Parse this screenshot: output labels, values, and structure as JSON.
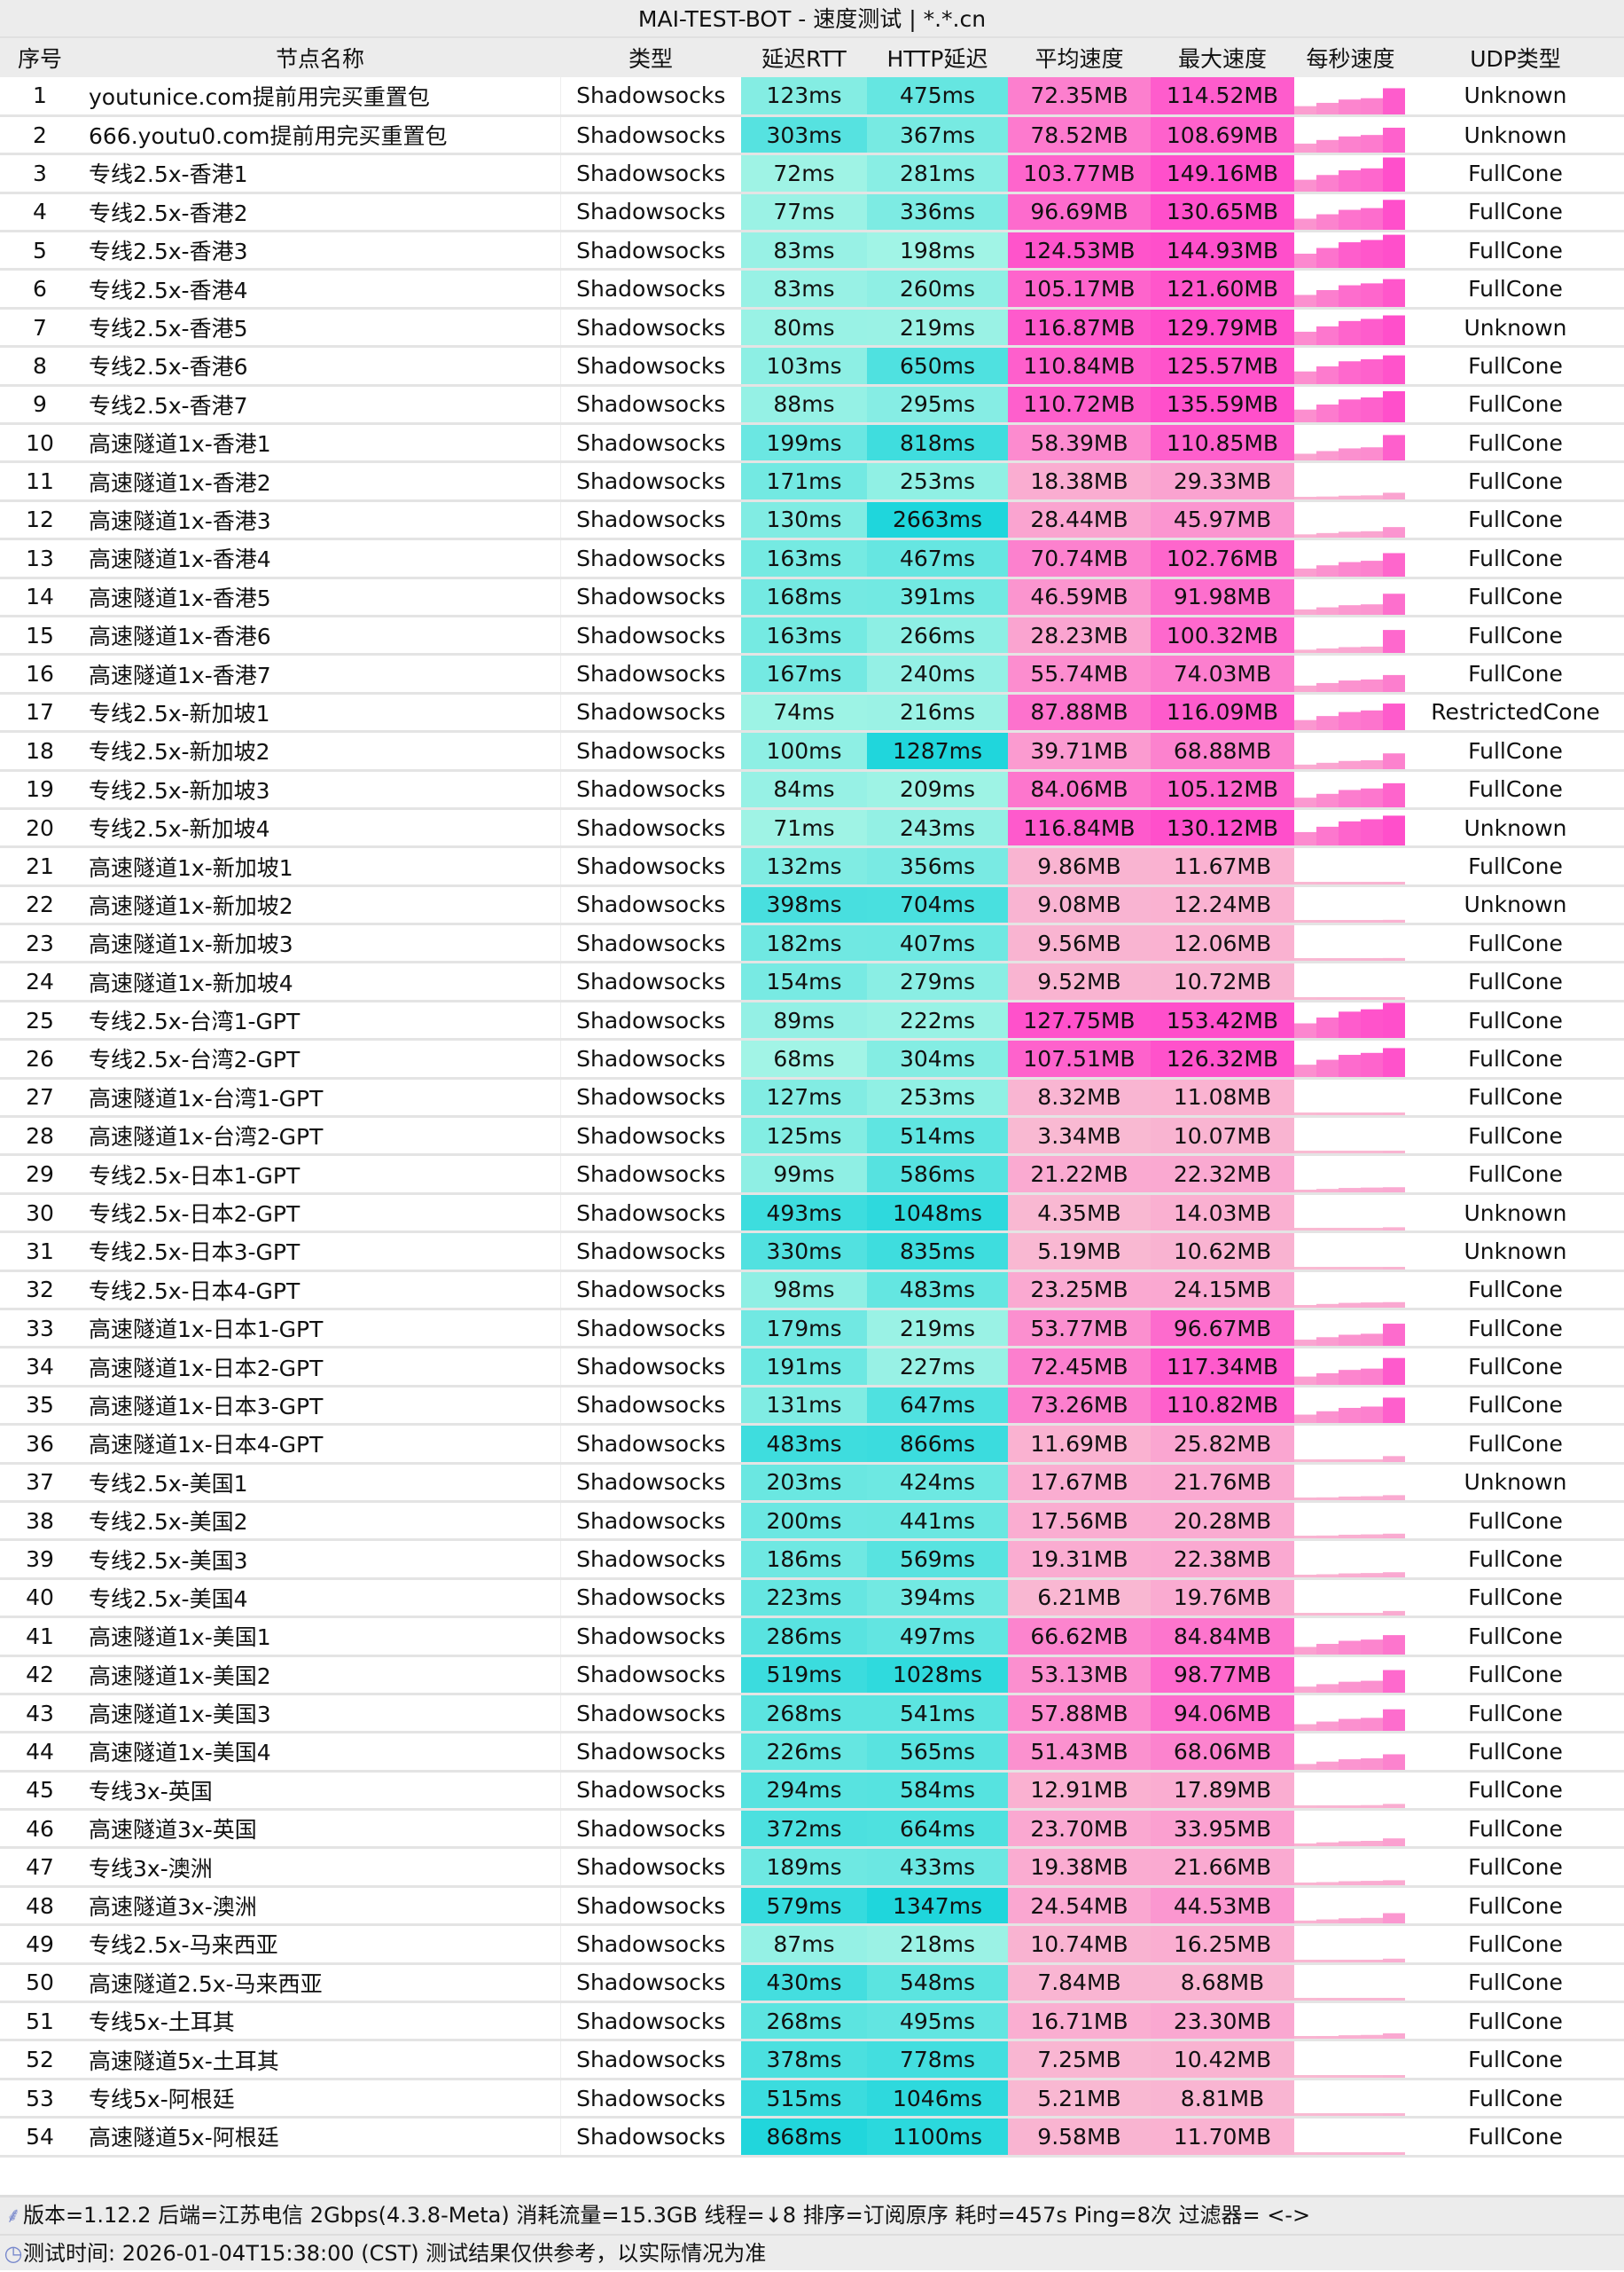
{
  "title": "MAI-TEST-BOT - 速度测试 | *.*.cn",
  "columns": [
    "序号",
    "节点名称",
    "类型",
    "延迟RTT",
    "HTTP延迟",
    "平均速度",
    "最大速度",
    "每秒速度",
    "UDP类型"
  ],
  "colors": {
    "latency_low": "#a8f5e6",
    "latency_high": "#1fd6dc",
    "speed_low": "#f9bcd2",
    "speed_high": "#ff4fcb",
    "header_bg": "#ececec"
  },
  "rows": [
    [
      "1",
      "youtunice.com提前用完买重置包",
      "Shadowsocks",
      "123ms",
      "475ms",
      "72.35MB",
      "114.52MB",
      "Unknown"
    ],
    [
      "2",
      "666.youtu0.com提前用完买重置包",
      "Shadowsocks",
      "303ms",
      "367ms",
      "78.52MB",
      "108.69MB",
      "Unknown"
    ],
    [
      "3",
      "专线2.5x-香港1",
      "Shadowsocks",
      "72ms",
      "281ms",
      "103.77MB",
      "149.16MB",
      "FullCone"
    ],
    [
      "4",
      "专线2.5x-香港2",
      "Shadowsocks",
      "77ms",
      "336ms",
      "96.69MB",
      "130.65MB",
      "FullCone"
    ],
    [
      "5",
      "专线2.5x-香港3",
      "Shadowsocks",
      "83ms",
      "198ms",
      "124.53MB",
      "144.93MB",
      "FullCone"
    ],
    [
      "6",
      "专线2.5x-香港4",
      "Shadowsocks",
      "83ms",
      "260ms",
      "105.17MB",
      "121.60MB",
      "FullCone"
    ],
    [
      "7",
      "专线2.5x-香港5",
      "Shadowsocks",
      "80ms",
      "219ms",
      "116.87MB",
      "129.79MB",
      "Unknown"
    ],
    [
      "8",
      "专线2.5x-香港6",
      "Shadowsocks",
      "103ms",
      "650ms",
      "110.84MB",
      "125.57MB",
      "FullCone"
    ],
    [
      "9",
      "专线2.5x-香港7",
      "Shadowsocks",
      "88ms",
      "295ms",
      "110.72MB",
      "135.59MB",
      "FullCone"
    ],
    [
      "10",
      "高速隧道1x-香港1",
      "Shadowsocks",
      "199ms",
      "818ms",
      "58.39MB",
      "110.85MB",
      "FullCone"
    ],
    [
      "11",
      "高速隧道1x-香港2",
      "Shadowsocks",
      "171ms",
      "253ms",
      "18.38MB",
      "29.33MB",
      "FullCone"
    ],
    [
      "12",
      "高速隧道1x-香港3",
      "Shadowsocks",
      "130ms",
      "2663ms",
      "28.44MB",
      "45.97MB",
      "FullCone"
    ],
    [
      "13",
      "高速隧道1x-香港4",
      "Shadowsocks",
      "163ms",
      "467ms",
      "70.74MB",
      "102.76MB",
      "FullCone"
    ],
    [
      "14",
      "高速隧道1x-香港5",
      "Shadowsocks",
      "168ms",
      "391ms",
      "46.59MB",
      "91.98MB",
      "FullCone"
    ],
    [
      "15",
      "高速隧道1x-香港6",
      "Shadowsocks",
      "163ms",
      "266ms",
      "28.23MB",
      "100.32MB",
      "FullCone"
    ],
    [
      "16",
      "高速隧道1x-香港7",
      "Shadowsocks",
      "167ms",
      "240ms",
      "55.74MB",
      "74.03MB",
      "FullCone"
    ],
    [
      "17",
      "专线2.5x-新加坡1",
      "Shadowsocks",
      "74ms",
      "216ms",
      "87.88MB",
      "116.09MB",
      "RestrictedCone"
    ],
    [
      "18",
      "专线2.5x-新加坡2",
      "Shadowsocks",
      "100ms",
      "1287ms",
      "39.71MB",
      "68.88MB",
      "FullCone"
    ],
    [
      "19",
      "专线2.5x-新加坡3",
      "Shadowsocks",
      "84ms",
      "209ms",
      "84.06MB",
      "105.12MB",
      "FullCone"
    ],
    [
      "20",
      "专线2.5x-新加坡4",
      "Shadowsocks",
      "71ms",
      "243ms",
      "116.84MB",
      "130.12MB",
      "Unknown"
    ],
    [
      "21",
      "高速隧道1x-新加坡1",
      "Shadowsocks",
      "132ms",
      "356ms",
      "9.86MB",
      "11.67MB",
      "FullCone"
    ],
    [
      "22",
      "高速隧道1x-新加坡2",
      "Shadowsocks",
      "398ms",
      "704ms",
      "9.08MB",
      "12.24MB",
      "Unknown"
    ],
    [
      "23",
      "高速隧道1x-新加坡3",
      "Shadowsocks",
      "182ms",
      "407ms",
      "9.56MB",
      "12.06MB",
      "FullCone"
    ],
    [
      "24",
      "高速隧道1x-新加坡4",
      "Shadowsocks",
      "154ms",
      "279ms",
      "9.52MB",
      "10.72MB",
      "FullCone"
    ],
    [
      "25",
      "专线2.5x-台湾1-GPT",
      "Shadowsocks",
      "89ms",
      "222ms",
      "127.75MB",
      "153.42MB",
      "FullCone"
    ],
    [
      "26",
      "专线2.5x-台湾2-GPT",
      "Shadowsocks",
      "68ms",
      "304ms",
      "107.51MB",
      "126.32MB",
      "FullCone"
    ],
    [
      "27",
      "高速隧道1x-台湾1-GPT",
      "Shadowsocks",
      "127ms",
      "253ms",
      "8.32MB",
      "11.08MB",
      "FullCone"
    ],
    [
      "28",
      "高速隧道1x-台湾2-GPT",
      "Shadowsocks",
      "125ms",
      "514ms",
      "3.34MB",
      "10.07MB",
      "FullCone"
    ],
    [
      "29",
      "专线2.5x-日本1-GPT",
      "Shadowsocks",
      "99ms",
      "586ms",
      "21.22MB",
      "22.32MB",
      "FullCone"
    ],
    [
      "30",
      "专线2.5x-日本2-GPT",
      "Shadowsocks",
      "493ms",
      "1048ms",
      "4.35MB",
      "14.03MB",
      "Unknown"
    ],
    [
      "31",
      "专线2.5x-日本3-GPT",
      "Shadowsocks",
      "330ms",
      "835ms",
      "5.19MB",
      "10.62MB",
      "Unknown"
    ],
    [
      "32",
      "专线2.5x-日本4-GPT",
      "Shadowsocks",
      "98ms",
      "483ms",
      "23.25MB",
      "24.15MB",
      "FullCone"
    ],
    [
      "33",
      "高速隧道1x-日本1-GPT",
      "Shadowsocks",
      "179ms",
      "219ms",
      "53.77MB",
      "96.67MB",
      "FullCone"
    ],
    [
      "34",
      "高速隧道1x-日本2-GPT",
      "Shadowsocks",
      "191ms",
      "227ms",
      "72.45MB",
      "117.34MB",
      "FullCone"
    ],
    [
      "35",
      "高速隧道1x-日本3-GPT",
      "Shadowsocks",
      "131ms",
      "647ms",
      "73.26MB",
      "110.82MB",
      "FullCone"
    ],
    [
      "36",
      "高速隧道1x-日本4-GPT",
      "Shadowsocks",
      "483ms",
      "866ms",
      "11.69MB",
      "25.82MB",
      "FullCone"
    ],
    [
      "37",
      "专线2.5x-美国1",
      "Shadowsocks",
      "203ms",
      "424ms",
      "17.67MB",
      "21.76MB",
      "Unknown"
    ],
    [
      "38",
      "专线2.5x-美国2",
      "Shadowsocks",
      "200ms",
      "441ms",
      "17.56MB",
      "20.28MB",
      "FullCone"
    ],
    [
      "39",
      "专线2.5x-美国3",
      "Shadowsocks",
      "186ms",
      "569ms",
      "19.31MB",
      "22.38MB",
      "FullCone"
    ],
    [
      "40",
      "专线2.5x-美国4",
      "Shadowsocks",
      "223ms",
      "394ms",
      "6.21MB",
      "19.76MB",
      "FullCone"
    ],
    [
      "41",
      "高速隧道1x-美国1",
      "Shadowsocks",
      "286ms",
      "497ms",
      "66.62MB",
      "84.84MB",
      "FullCone"
    ],
    [
      "42",
      "高速隧道1x-美国2",
      "Shadowsocks",
      "519ms",
      "1028ms",
      "53.13MB",
      "98.77MB",
      "FullCone"
    ],
    [
      "43",
      "高速隧道1x-美国3",
      "Shadowsocks",
      "268ms",
      "541ms",
      "57.88MB",
      "94.06MB",
      "FullCone"
    ],
    [
      "44",
      "高速隧道1x-美国4",
      "Shadowsocks",
      "226ms",
      "565ms",
      "51.43MB",
      "68.06MB",
      "FullCone"
    ],
    [
      "45",
      "专线3x-英国",
      "Shadowsocks",
      "294ms",
      "584ms",
      "12.91MB",
      "17.89MB",
      "FullCone"
    ],
    [
      "46",
      "高速隧道3x-英国",
      "Shadowsocks",
      "372ms",
      "664ms",
      "23.70MB",
      "33.95MB",
      "FullCone"
    ],
    [
      "47",
      "专线3x-澳洲",
      "Shadowsocks",
      "189ms",
      "433ms",
      "19.38MB",
      "21.66MB",
      "FullCone"
    ],
    [
      "48",
      "高速隧道3x-澳洲",
      "Shadowsocks",
      "579ms",
      "1347ms",
      "24.54MB",
      "44.53MB",
      "FullCone"
    ],
    [
      "49",
      "专线2.5x-马来西亚",
      "Shadowsocks",
      "87ms",
      "218ms",
      "10.74MB",
      "16.25MB",
      "FullCone"
    ],
    [
      "50",
      "高速隧道2.5x-马来西亚",
      "Shadowsocks",
      "430ms",
      "548ms",
      "7.84MB",
      "8.68MB",
      "FullCone"
    ],
    [
      "51",
      "专线5x-土耳其",
      "Shadowsocks",
      "268ms",
      "495ms",
      "16.71MB",
      "23.30MB",
      "FullCone"
    ],
    [
      "52",
      "高速隧道5x-土耳其",
      "Shadowsocks",
      "378ms",
      "778ms",
      "7.25MB",
      "10.42MB",
      "FullCone"
    ],
    [
      "53",
      "专线5x-阿根廷",
      "Shadowsocks",
      "515ms",
      "1046ms",
      "5.21MB",
      "8.81MB",
      "FullCone"
    ],
    [
      "54",
      "高速隧道5x-阿根廷",
      "Shadowsocks",
      "868ms",
      "1100ms",
      "9.58MB",
      "11.70MB",
      "FullCone"
    ]
  ],
  "footer": {
    "line1_icon": "feather-icon",
    "line1": "版本=1.12.2  后端=江苏电信 2Gbps(4.3.8-Meta) 消耗流量=15.3GB  线程=↓8  排序=订阅原序  耗时=457s  Ping=8次  过滤器= <->",
    "line2_icon": "clock-icon",
    "line2": "测试时间: 2026-01-04T15:38:00 (CST)  测试结果仅供参考，以实际情况为准"
  }
}
